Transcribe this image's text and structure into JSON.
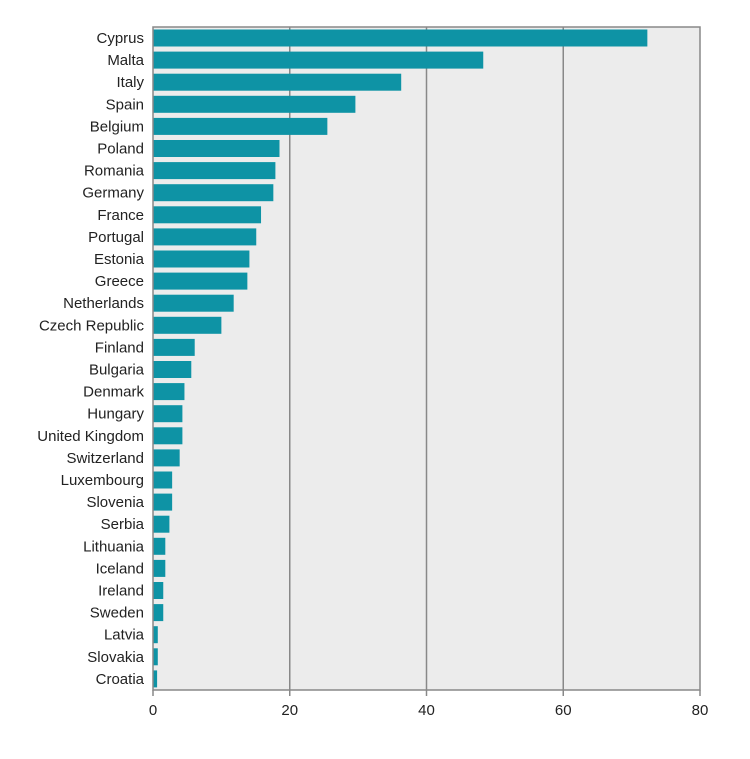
{
  "chart_data": {
    "type": "bar",
    "orientation": "horizontal",
    "categories": [
      "Cyprus",
      "Malta",
      "Italy",
      "Spain",
      "Belgium",
      "Poland",
      "Romania",
      "Germany",
      "France",
      "Portugal",
      "Estonia",
      "Greece",
      "Netherlands",
      "Czech Republic",
      "Finland",
      "Bulgaria",
      "Denmark",
      "Hungary",
      "United Kingdom",
      "Switzerland",
      "Luxembourg",
      "Slovenia",
      "Serbia",
      "Lithuania",
      "Iceland",
      "Ireland",
      "Sweden",
      "Latvia",
      "Slovakia",
      "Croatia"
    ],
    "values": [
      72.3,
      48.3,
      36.3,
      29.6,
      25.5,
      18.5,
      17.9,
      17.6,
      15.8,
      15.1,
      14.1,
      13.8,
      11.8,
      10.0,
      6.1,
      5.6,
      4.6,
      4.3,
      4.3,
      3.9,
      2.8,
      2.8,
      2.4,
      1.8,
      1.8,
      1.5,
      1.5,
      0.7,
      0.7,
      0.6
    ],
    "title": "",
    "xlabel": "",
    "ylabel": "",
    "xlim": [
      0,
      80
    ],
    "xticks": [
      0,
      20,
      40,
      60,
      80
    ],
    "grid": true,
    "legend": "none"
  },
  "colors": {
    "bar": "#0e93a5",
    "plot_background": "#ececec",
    "grid": "#888888",
    "frame": "#888888"
  }
}
